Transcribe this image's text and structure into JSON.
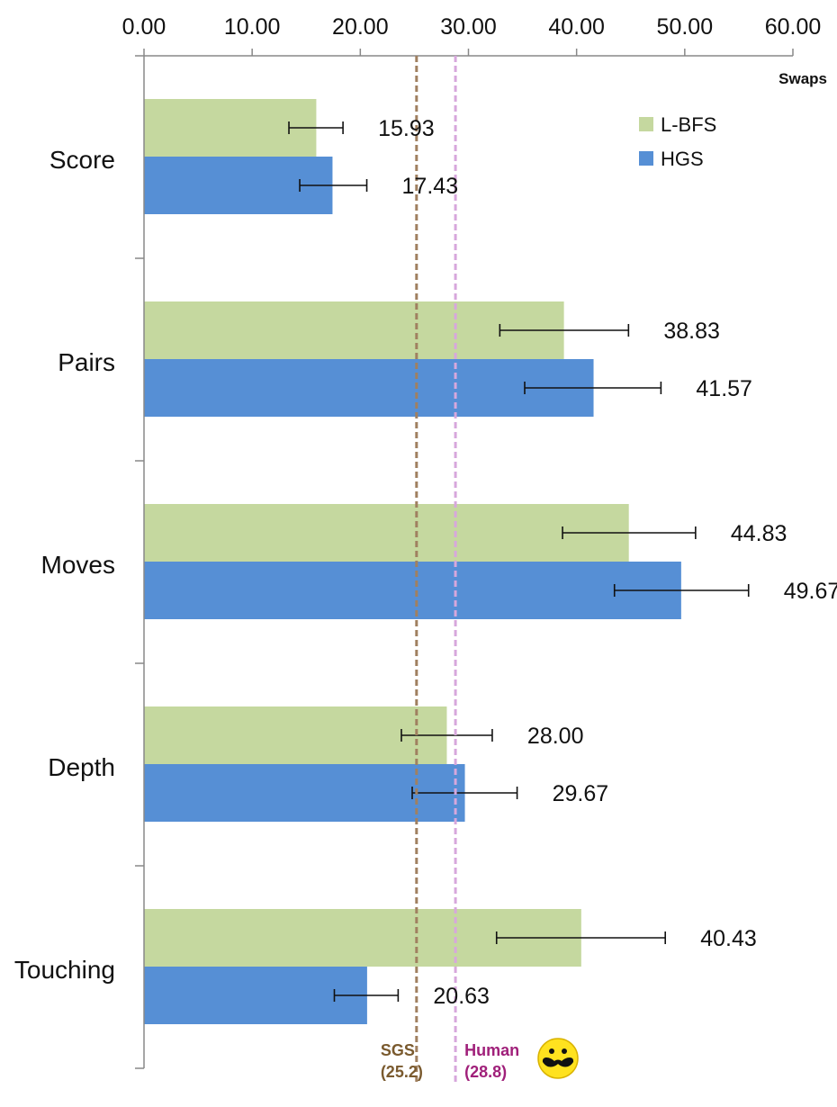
{
  "chart_data": {
    "type": "bar",
    "orientation": "horizontal",
    "title": "",
    "xlabel": "Swaps",
    "ylabel": "",
    "xlim": [
      0,
      60
    ],
    "x_ticks": [
      "0.00",
      "10.00",
      "20.00",
      "30.00",
      "40.00",
      "50.00",
      "60.00"
    ],
    "x_axis_position": "top",
    "grid": false,
    "legend_position": "top-right",
    "categories": [
      "Score",
      "Pairs",
      "Moves",
      "Depth",
      "Touching"
    ],
    "series": [
      {
        "name": "L-BFS",
        "color": "#c5d89f",
        "values": [
          15.93,
          38.83,
          44.83,
          28.0,
          40.43
        ],
        "labels": [
          "15.93",
          "38.83",
          "44.83",
          "28.00",
          "40.43"
        ],
        "error_low": [
          13.4,
          32.9,
          38.7,
          23.8,
          32.6
        ],
        "error_high": [
          18.4,
          44.8,
          51.0,
          32.2,
          48.2
        ]
      },
      {
        "name": "HGS",
        "color": "#568fd5",
        "values": [
          17.43,
          41.57,
          49.67,
          29.67,
          20.63
        ],
        "labels": [
          "17.43",
          "41.57",
          "49.67",
          "29.67",
          "20.63"
        ],
        "error_low": [
          14.4,
          35.2,
          43.5,
          24.8,
          17.6
        ],
        "error_high": [
          20.6,
          47.8,
          55.9,
          34.5,
          23.5
        ]
      }
    ],
    "reference_lines": [
      {
        "name": "SGS",
        "value_label": "(25.2)",
        "value": 25.2,
        "color": "#a08060",
        "text_color": "#7a5a2e"
      },
      {
        "name": "Human",
        "value_label": "(28.8)",
        "value": 28.8,
        "color": "#d7a7dc",
        "text_color": "#a0207a",
        "icon": "mustache-smiley-icon"
      }
    ]
  }
}
